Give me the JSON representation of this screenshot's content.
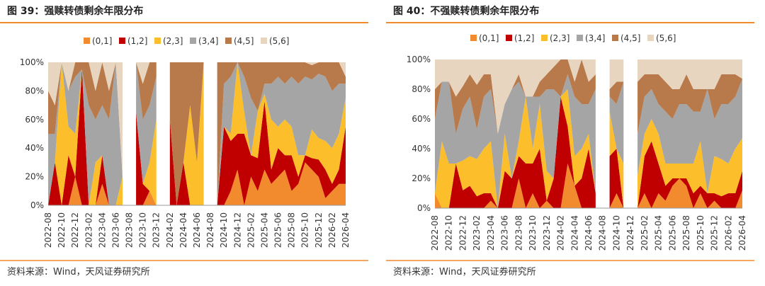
{
  "chart_data": [
    {
      "type": "area",
      "stacked": true,
      "title": "图 39：强赎转债剩余年限分布",
      "source": "资料来源：Wind，天风证券研究所",
      "categories": [
        "2022-08",
        null,
        "2022-10",
        null,
        "2022-12",
        null,
        "2023-02",
        null,
        "2023-04",
        null,
        "2023-06",
        null,
        "2023-08",
        null,
        "2023-10",
        null,
        "2023-12",
        null,
        "2024-02",
        null,
        "2024-04",
        null,
        "2024-06",
        null,
        "2024-08",
        null,
        "2024-10",
        null,
        "2024-12",
        null,
        "2025-02",
        null,
        "2025-04",
        null,
        "2025-06",
        null,
        "2025-08",
        null,
        "2025-10",
        null,
        "2025-12",
        null,
        "2026-02",
        null,
        "2026-04"
      ],
      "ylim": [
        0,
        100
      ],
      "yticks": [
        {
          "value": 0,
          "label": "0%"
        },
        {
          "value": 20,
          "label": "20%"
        },
        {
          "value": 40,
          "label": "40%"
        },
        {
          "value": 60,
          "label": "60%"
        },
        {
          "value": 80,
          "label": "80%"
        },
        {
          "value": 100,
          "label": "100%"
        }
      ],
      "series": [
        {
          "name": "(0,1]",
          "color": "#f28a2e",
          "values": [
            0,
            0,
            0,
            0,
            20,
            0,
            0,
            0,
            15,
            0,
            0,
            0,
            null,
            0,
            0,
            10,
            0,
            null,
            0,
            0,
            0,
            0,
            0,
            0,
            null,
            0,
            0,
            10,
            25,
            0,
            20,
            10,
            25,
            15,
            20,
            25,
            10,
            15,
            30,
            25,
            20,
            5,
            10,
            15,
            15
          ]
        },
        {
          "name": "(1,2]",
          "color": "#c00000",
          "values": [
            0,
            30,
            0,
            35,
            0,
            95,
            0,
            0,
            20,
            0,
            0,
            0,
            null,
            65,
            15,
            0,
            0,
            null,
            60,
            0,
            30,
            0,
            0,
            0,
            null,
            0,
            55,
            35,
            25,
            50,
            15,
            23,
            48,
            10,
            20,
            10,
            25,
            5,
            5,
            8,
            12,
            20,
            5,
            10,
            40
          ]
        },
        {
          "name": "(2,3]",
          "color": "#fcbf2b",
          "values": [
            0,
            0,
            100,
            20,
            30,
            0,
            0,
            30,
            0,
            0,
            0,
            20,
            null,
            0,
            0,
            20,
            60,
            null,
            0,
            0,
            0,
            70,
            30,
            100,
            null,
            0,
            0,
            5,
            50,
            15,
            0,
            33,
            5,
            35,
            15,
            25,
            20,
            15,
            0,
            20,
            15,
            20,
            25,
            25,
            20
          ]
        },
        {
          "name": "(3,4]",
          "color": "#a5a5a5",
          "values": [
            50,
            20,
            0,
            25,
            40,
            0,
            70,
            30,
            35,
            60,
            100,
            0,
            null,
            35,
            45,
            40,
            30,
            null,
            0,
            0,
            0,
            0,
            0,
            0,
            null,
            0,
            30,
            40,
            0,
            25,
            40,
            0,
            7,
            25,
            35,
            25,
            35,
            50,
            55,
            35,
            45,
            45,
            40,
            35,
            10
          ]
        },
        {
          "name": "(4,5]",
          "color": "#b87a4b",
          "values": [
            30,
            20,
            0,
            0,
            10,
            5,
            30,
            20,
            30,
            20,
            0,
            0,
            null,
            0,
            25,
            30,
            10,
            null,
            40,
            100,
            70,
            30,
            70,
            0,
            null,
            100,
            15,
            10,
            0,
            10,
            25,
            34,
            15,
            15,
            10,
            15,
            10,
            15,
            10,
            10,
            8,
            10,
            20,
            15,
            5
          ]
        },
        {
          "name": "(5,6]",
          "color": "#e8d5bf",
          "values": [
            20,
            30,
            0,
            20,
            0,
            0,
            0,
            20,
            0,
            20,
            0,
            80,
            null,
            0,
            15,
            0,
            0,
            null,
            0,
            0,
            0,
            0,
            0,
            0,
            null,
            0,
            0,
            0,
            0,
            0,
            0,
            0,
            0,
            0,
            0,
            0,
            0,
            0,
            0,
            2,
            0,
            0,
            0,
            0,
            10
          ]
        }
      ]
    },
    {
      "type": "area",
      "stacked": true,
      "title": "图 40：不强赎转债剩余年限分布",
      "source": "资料来源：Wind，天风证券研究所",
      "categories": [
        "2022-08",
        null,
        "2022-10",
        null,
        "2022-12",
        null,
        "2023-02",
        null,
        "2023-04",
        null,
        "2023-06",
        null,
        "2023-08",
        null,
        "2023-10",
        null,
        "2023-12",
        null,
        "2024-02",
        null,
        "2024-04",
        null,
        "2024-06",
        null,
        "2024-08",
        null,
        "2024-10",
        null,
        "2024-12",
        null,
        "2025-02",
        null,
        "2025-04",
        null,
        "2025-06",
        null,
        "2025-08",
        null,
        "2025-10",
        null,
        "2025-12",
        null,
        "2026-02",
        null,
        "2026-04"
      ],
      "ylim": [
        0,
        100
      ],
      "yticks": [
        {
          "value": 0,
          "label": "0%"
        },
        {
          "value": 20,
          "label": "20%"
        },
        {
          "value": 40,
          "label": "40%"
        },
        {
          "value": 60,
          "label": "60%"
        },
        {
          "value": 80,
          "label": "80%"
        },
        {
          "value": 100,
          "label": "100%"
        }
      ],
      "series": [
        {
          "name": "(0,1]",
          "color": "#f28a2e",
          "values": [
            10,
            0,
            0,
            0,
            0,
            0,
            0,
            0,
            5,
            0,
            0,
            0,
            20,
            0,
            10,
            0,
            5,
            0,
            0,
            30,
            15,
            0,
            0,
            0,
            null,
            0,
            10,
            0,
            null,
            0,
            10,
            0,
            10,
            5,
            15,
            20,
            15,
            0,
            10,
            0,
            5,
            0,
            0,
            0,
            12
          ]
        },
        {
          "name": "(1,2]",
          "color": "#c00000",
          "values": [
            0,
            0,
            0,
            30,
            12,
            15,
            8,
            10,
            5,
            0,
            25,
            20,
            15,
            30,
            20,
            40,
            0,
            20,
            75,
            25,
            0,
            20,
            40,
            10,
            null,
            35,
            30,
            0,
            null,
            0,
            25,
            45,
            20,
            10,
            5,
            0,
            5,
            10,
            5,
            10,
            5,
            8,
            10,
            10,
            13
          ]
        },
        {
          "name": "(2,3]",
          "color": "#fcbf2b",
          "values": [
            0,
            45,
            30,
            0,
            20,
            20,
            25,
            30,
            35,
            0,
            25,
            0,
            10,
            45,
            10,
            30,
            20,
            0,
            0,
            25,
            20,
            20,
            10,
            0,
            null,
            30,
            0,
            30,
            null,
            22,
            15,
            15,
            20,
            15,
            10,
            10,
            10,
            20,
            30,
            0,
            25,
            25,
            20,
            30,
            22
          ]
        },
        {
          "name": "(3,4]",
          "color": "#a5a5a5",
          "values": [
            50,
            40,
            55,
            20,
            35,
            40,
            20,
            35,
            35,
            50,
            20,
            60,
            40,
            0,
            35,
            5,
            55,
            60,
            0,
            10,
            40,
            30,
            20,
            70,
            null,
            10,
            30,
            55,
            null,
            28,
            25,
            20,
            20,
            35,
            30,
            40,
            40,
            35,
            20,
            70,
            25,
            37,
            40,
            35,
            40
          ]
        },
        {
          "name": "(4,5]",
          "color": "#b87a4b",
          "values": [
            20,
            0,
            0,
            25,
            15,
            15,
            30,
            15,
            10,
            0,
            0,
            0,
            5,
            0,
            0,
            10,
            10,
            15,
            25,
            10,
            10,
            30,
            15,
            10,
            null,
            5,
            15,
            0,
            null,
            35,
            15,
            10,
            20,
            20,
            20,
            10,
            20,
            15,
            15,
            0,
            20,
            20,
            20,
            15,
            0
          ]
        },
        {
          "name": "(5,6]",
          "color": "#e8d5bf",
          "values": [
            20,
            15,
            15,
            25,
            18,
            10,
            17,
            10,
            10,
            50,
            30,
            20,
            10,
            25,
            25,
            15,
            10,
            5,
            0,
            0,
            15,
            0,
            15,
            10,
            null,
            20,
            15,
            15,
            null,
            15,
            10,
            10,
            10,
            15,
            20,
            20,
            10,
            20,
            20,
            20,
            20,
            10,
            10,
            10,
            13
          ]
        }
      ]
    }
  ]
}
